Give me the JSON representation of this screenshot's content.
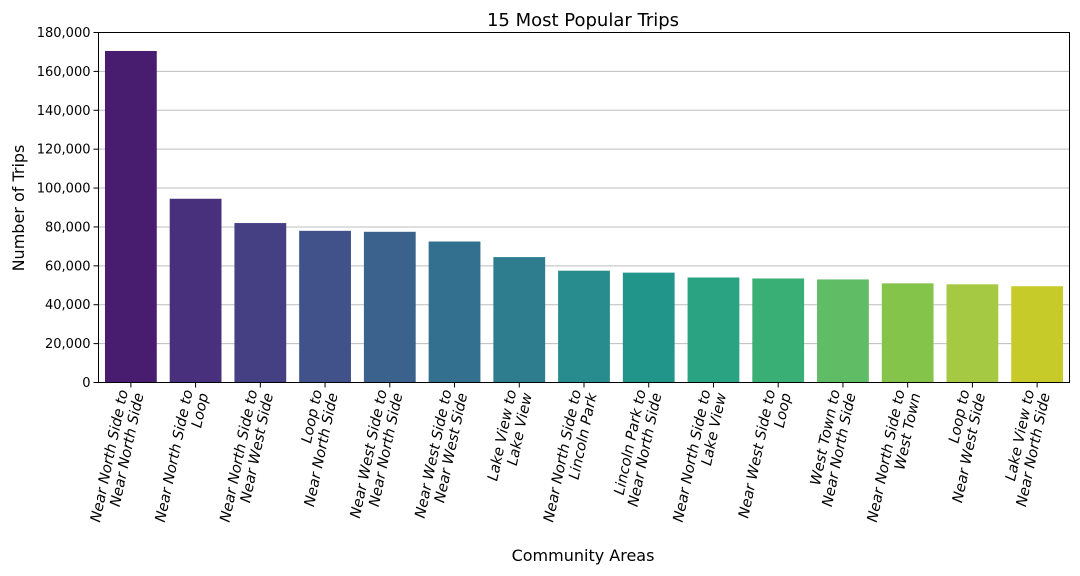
{
  "chart_data": {
    "type": "bar",
    "title": "15 Most Popular Trips",
    "xlabel": "Community Areas",
    "ylabel": "Number of Trips",
    "ylim": [
      0,
      180000
    ],
    "yticks": [
      "0",
      "20,000",
      "40,000",
      "60,000",
      "80,000",
      "100,000",
      "120,000",
      "140,000",
      "160,000",
      "180,000"
    ],
    "grid": "horizontal",
    "categories": [
      [
        "Near North Side to",
        "Near North Side"
      ],
      [
        "Near North Side to",
        "Loop"
      ],
      [
        "Near North Side to",
        "Near West Side"
      ],
      [
        "Loop to",
        "Near North Side"
      ],
      [
        "Near West Side to",
        "Near North Side"
      ],
      [
        "Near West Side to",
        "Near West Side"
      ],
      [
        "Lake View to",
        "Lake View"
      ],
      [
        "Near North Side to",
        "Lincoln Park"
      ],
      [
        "Lincoln Park to",
        "Near North Side"
      ],
      [
        "Near North Side to",
        "Lake View"
      ],
      [
        "Near West Side to",
        "Loop"
      ],
      [
        "West Town to",
        "Near North Side"
      ],
      [
        "Near North Side to",
        "West Town"
      ],
      [
        "Loop to",
        "Near West Side"
      ],
      [
        "Lake View to",
        "Near North Side"
      ]
    ],
    "values": [
      170500,
      94500,
      82000,
      78000,
      77500,
      72500,
      64500,
      57500,
      56500,
      54000,
      53500,
      53000,
      51000,
      50500,
      49500
    ],
    "colors": [
      "#481c6e",
      "#48307c",
      "#453f84",
      "#41528a",
      "#3a628c",
      "#336f8e",
      "#2d7d8e",
      "#288b8d",
      "#21958a",
      "#2aa383",
      "#3aaf75",
      "#61bc66",
      "#85c44b",
      "#a6c943",
      "#c6cb2a"
    ]
  }
}
